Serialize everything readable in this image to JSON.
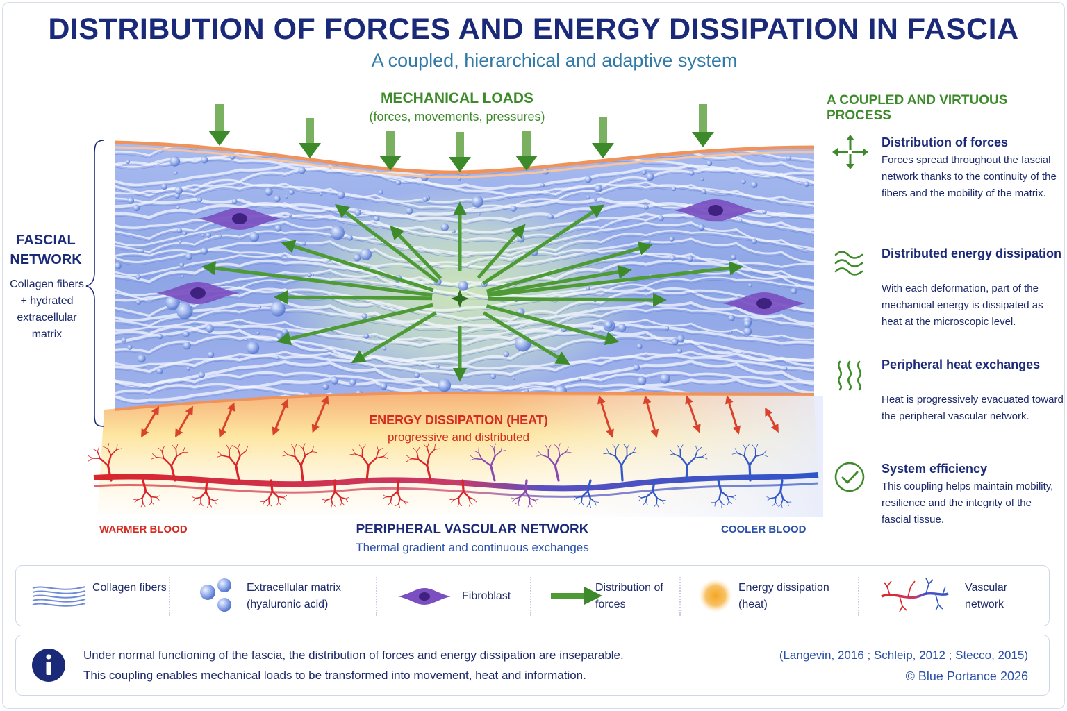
{
  "header": {
    "title": "DISTRIBUTION OF FORCES AND ENERGY DISSIPATION IN FASCIA",
    "subtitle": "A coupled, hierarchical and adaptive system"
  },
  "diagram": {
    "loads_title": "MECHANICAL LOADS",
    "loads_subtitle": "(forces, movements, pressures)",
    "fascial_network_title": "FASCIAL NETWORK",
    "fascial_network_subtitle": "Collagen fibers + hydrated extracellular matrix",
    "heat_title": "ENERGY DISSIPATION (HEAT)",
    "heat_subtitle": "progressive and distributed",
    "warm_label": "WARMER BLOOD",
    "cool_label": "COOLER BLOOD",
    "vascular_title": "PERIPHERAL VASCULAR NETWORK",
    "vascular_subtitle": "Thermal gradient and continuous exchanges"
  },
  "sidebar": {
    "heading": "A COUPLED AND VIRTUOUS PROCESS",
    "items": [
      {
        "icon": "force-distribution-icon",
        "title": "Distribution of forces",
        "description": "Forces spread throughout the fascial network thanks to the continuity of the fibers and the mobility of the matrix."
      },
      {
        "icon": "wave-icon",
        "title": "Distributed energy dissipation",
        "description": "With each deformation, part of the mechanical energy is dissipated as heat at the microscopic level."
      },
      {
        "icon": "heat-waves-icon",
        "title": "Peripheral heat exchanges",
        "description": "Heat is progressively evacuated toward the peripheral vascular network."
      },
      {
        "icon": "check-circle-icon",
        "title": "System efficiency",
        "description": "This coupling helps maintain mobility, resilience and the integrity of the fascial tissue."
      }
    ]
  },
  "legend": {
    "items": [
      {
        "icon": "collagen-fibers-icon",
        "label": "Collagen fibers"
      },
      {
        "icon": "extracellular-matrix-icon",
        "label": "Extracellular matrix (hyaluronic acid)"
      },
      {
        "icon": "fibroblast-icon",
        "label": "Fibroblast"
      },
      {
        "icon": "force-arrow-icon",
        "label": "Distribution of forces"
      },
      {
        "icon": "heat-glow-icon",
        "label": "Energy dissipation (heat)"
      },
      {
        "icon": "vascular-network-icon",
        "label": "Vascular network"
      }
    ]
  },
  "footer": {
    "line1": "Under normal functioning of the fascia, the distribution of forces and energy dissipation are inseparable.",
    "line2": "This coupling enables mechanical loads to be transformed into movement, heat and information.",
    "references": "(Langevin, 2016 ; Schleip, 2012 ; Stecco, 2015)",
    "copyright": "© Blue Portance 2026"
  },
  "colors": {
    "title": "#1b2a78",
    "green": "#3d8a2a",
    "red": "#d42a20",
    "blue": "#2a4fa8",
    "tissue": "#7d95dc",
    "fibroblast": "#6b3fa0"
  }
}
